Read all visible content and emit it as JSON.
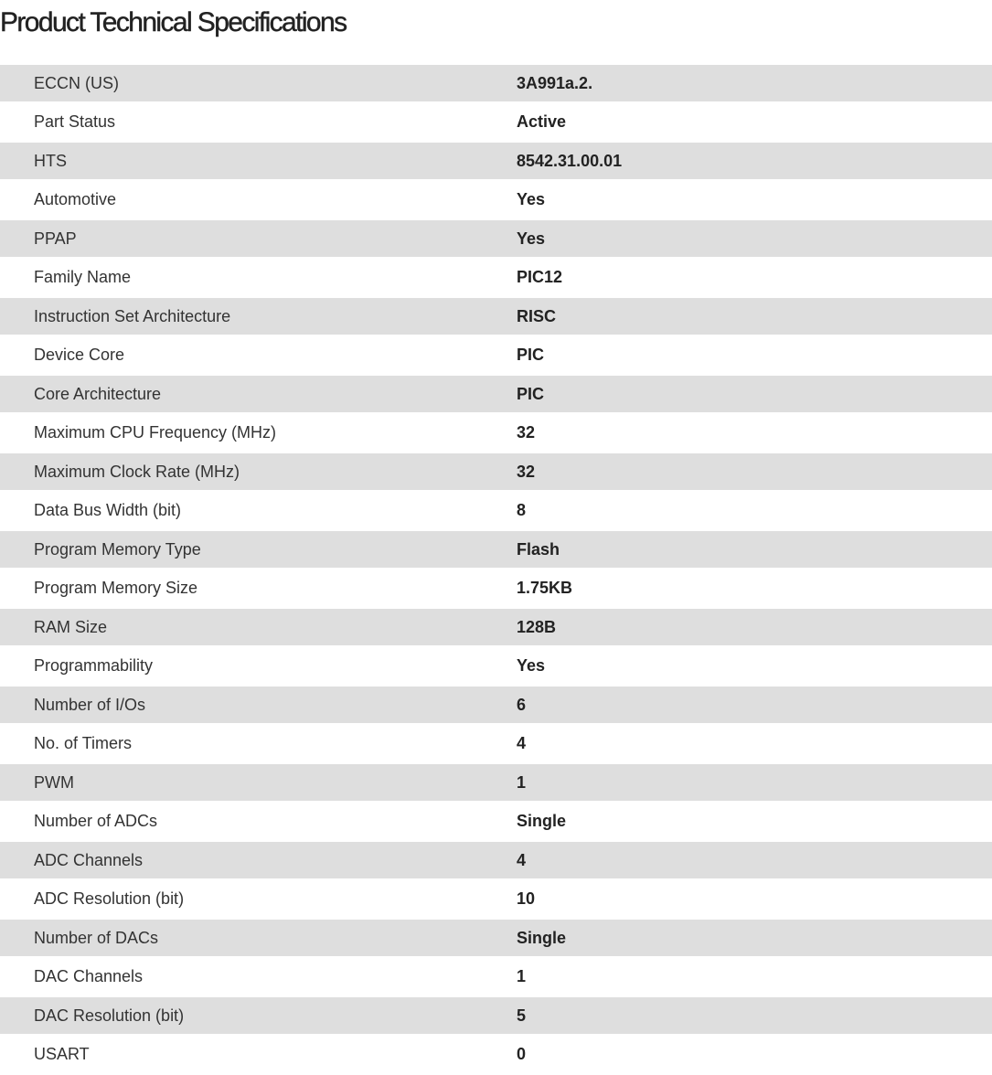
{
  "title": "Product Technical Specifications",
  "specs": [
    {
      "label": "ECCN (US)",
      "value": "3A991a.2."
    },
    {
      "label": "Part Status",
      "value": "Active"
    },
    {
      "label": "HTS",
      "value": "8542.31.00.01"
    },
    {
      "label": "Automotive",
      "value": "Yes"
    },
    {
      "label": "PPAP",
      "value": "Yes"
    },
    {
      "label": "Family Name",
      "value": "PIC12"
    },
    {
      "label": "Instruction Set Architecture",
      "value": "RISC"
    },
    {
      "label": "Device Core",
      "value": "PIC"
    },
    {
      "label": "Core Architecture",
      "value": "PIC"
    },
    {
      "label": "Maximum CPU Frequency (MHz)",
      "value": "32"
    },
    {
      "label": "Maximum Clock Rate (MHz)",
      "value": "32"
    },
    {
      "label": "Data Bus Width (bit)",
      "value": "8"
    },
    {
      "label": "Program Memory Type",
      "value": "Flash"
    },
    {
      "label": "Program Memory Size",
      "value": "1.75KB"
    },
    {
      "label": "RAM Size",
      "value": "128B"
    },
    {
      "label": "Programmability",
      "value": "Yes"
    },
    {
      "label": "Number of I/Os",
      "value": "6"
    },
    {
      "label": "No. of Timers",
      "value": "4"
    },
    {
      "label": "PWM",
      "value": "1"
    },
    {
      "label": "Number of ADCs",
      "value": "Single"
    },
    {
      "label": "ADC Channels",
      "value": "4"
    },
    {
      "label": "ADC Resolution (bit)",
      "value": "10"
    },
    {
      "label": "Number of DACs",
      "value": "Single"
    },
    {
      "label": "DAC Channels",
      "value": "1"
    },
    {
      "label": "DAC Resolution (bit)",
      "value": "5"
    },
    {
      "label": "USART",
      "value": "0"
    }
  ]
}
